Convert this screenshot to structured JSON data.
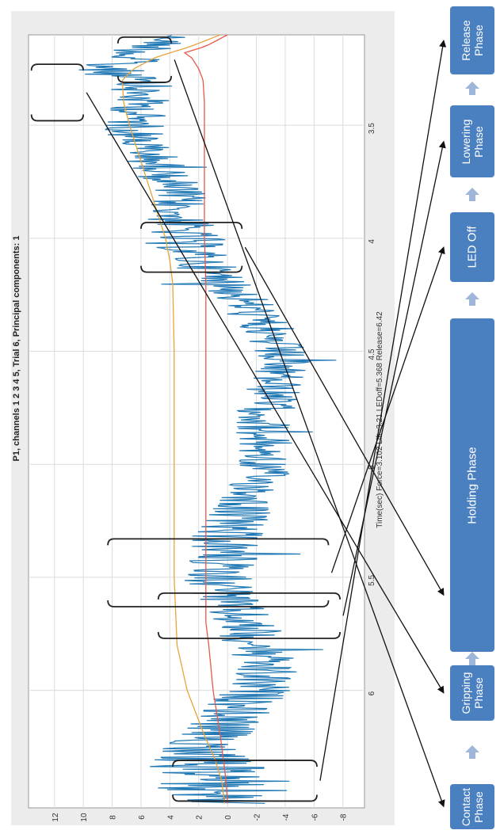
{
  "chart_data": {
    "type": "line",
    "title": "P1, channels 1  2  3  4  5, Trial 6, Principal components: 1",
    "xlabel": "Time(sec) Force=3.102 Lift=3.21 LEDoff=5.368 Release=6.42",
    "ylabel": "",
    "xlim": [
      3.1,
      6.52
    ],
    "ylim": [
      -9.5,
      13.8
    ],
    "x_ticks": [
      3.5,
      4,
      4.5,
      5,
      5.5,
      6
    ],
    "x_tick_labels": [
      "3.5",
      "4",
      "4.5",
      "5",
      "5.5",
      "6"
    ],
    "y_ticks": [
      12,
      10,
      8,
      6,
      4,
      2,
      0,
      -2,
      -4,
      -6,
      -8
    ],
    "y_tick_labels": [
      "12",
      "10",
      "8",
      "6",
      "4",
      "2",
      "0",
      "-2",
      "-4",
      "-6",
      "-8"
    ],
    "grid": true,
    "series": [
      {
        "color": "#1f77b4",
        "style": "noisy",
        "x": [
          3.1,
          3.15,
          3.2,
          3.25,
          3.3,
          3.4,
          3.5,
          3.6,
          3.7,
          3.8,
          3.9,
          4.0,
          4.1,
          4.2,
          4.3,
          4.4,
          4.5,
          4.6,
          4.7,
          4.8,
          4.9,
          5.0,
          5.1,
          5.2,
          5.3,
          5.4,
          5.5,
          5.6,
          5.7,
          5.8,
          5.9,
          6.0,
          6.1,
          6.2,
          6.3,
          6.4,
          6.5
        ],
        "y": [
          3.5,
          5.0,
          7.0,
          8.5,
          6.5,
          6.0,
          6.5,
          5.8,
          4.5,
          3.5,
          3.5,
          3.0,
          2.0,
          0.0,
          -1.5,
          -2.5,
          -3.5,
          -3.5,
          -3.0,
          -2.5,
          -2.5,
          -2.5,
          -2.0,
          -1.0,
          0.0,
          0.5,
          0.5,
          0.0,
          -1.0,
          -2.0,
          -2.5,
          -2.0,
          -0.5,
          1.0,
          2.0,
          0.5,
          0.0
        ],
        "amplitude": [
          1.2,
          2.0,
          2.8,
          2.5,
          2.2,
          2.0,
          2.2,
          2.0,
          2.0,
          2.0,
          2.2,
          2.6,
          2.2,
          2.0,
          2.0,
          2.0,
          2.0,
          2.0,
          2.0,
          2.0,
          2.0,
          2.0,
          2.0,
          2.2,
          2.5,
          2.6,
          2.6,
          2.4,
          2.2,
          2.2,
          2.4,
          2.4,
          2.5,
          2.5,
          3.5,
          5.0,
          4.0
        ]
      },
      {
        "color": "#e8a33c",
        "style": "smooth",
        "x": [
          3.1,
          3.15,
          3.2,
          3.25,
          3.3,
          3.4,
          3.5,
          3.6,
          3.7,
          3.8,
          3.9,
          4.0,
          4.1,
          4.2,
          4.5,
          4.8,
          5.0,
          5.5,
          5.8,
          6.0,
          6.2,
          6.3,
          6.4,
          6.5
        ],
        "y": [
          0.5,
          2.5,
          5.0,
          6.5,
          7.3,
          7.2,
          6.8,
          6.3,
          5.8,
          5.3,
          4.8,
          4.3,
          4.0,
          3.8,
          3.7,
          3.7,
          3.7,
          3.7,
          3.5,
          2.8,
          1.6,
          0.9,
          0.4,
          0.2
        ]
      },
      {
        "color": "#e8584a",
        "style": "smooth",
        "x": [
          3.1,
          3.15,
          3.18,
          3.2,
          3.25,
          3.3,
          3.4,
          3.6,
          3.8,
          4.0,
          4.2,
          4.5,
          4.8,
          5.0,
          5.5,
          5.7,
          5.8,
          6.0,
          6.2,
          6.3,
          6.4,
          6.5
        ],
        "y": [
          0.0,
          1.5,
          3.0,
          2.5,
          2.0,
          1.7,
          1.6,
          1.6,
          1.6,
          1.6,
          1.5,
          1.5,
          1.5,
          1.5,
          1.5,
          1.5,
          1.3,
          1.0,
          0.5,
          0.3,
          0.1,
          0.0
        ]
      }
    ],
    "brackets": [
      {
        "x0": 3.11,
        "x1": 3.31,
        "y0": 7.6,
        "y1": 3.9
      },
      {
        "x0": 3.23,
        "x1": 3.48,
        "y0": 13.6,
        "y1": 10.0
      },
      {
        "x0": 3.93,
        "x1": 4.15,
        "y0": 6.0,
        "y1": -1.0
      },
      {
        "x0": 5.33,
        "x1": 5.63,
        "y0": 8.3,
        "y1": -7.0
      },
      {
        "x0": 5.57,
        "x1": 5.77,
        "y0": 4.8,
        "y1": -7.8
      },
      {
        "x0": 6.31,
        "x1": 6.49,
        "y0": 3.8,
        "y1": -6.2
      }
    ]
  },
  "phases": [
    {
      "id": "contact",
      "label": "Contact\nPhase",
      "bracket": 0
    },
    {
      "id": "gripping",
      "label": "Gripping\nPhase",
      "bracket": 1
    },
    {
      "id": "holding",
      "label": "Holding Phase",
      "bracket": 2
    },
    {
      "id": "led-off",
      "label": "LED Off",
      "bracket": 3
    },
    {
      "id": "lowering",
      "label": "Lowering\nPhase",
      "bracket": 4
    },
    {
      "id": "release",
      "label": "Release\nPhase",
      "bracket": 5
    }
  ],
  "colors": {
    "box": "#4a7fc0",
    "box_text": "#ffffff",
    "arrow": "#111111",
    "up_arrow": "#9db6da",
    "grid": "#dcdcdc",
    "panel": "#ececec"
  }
}
